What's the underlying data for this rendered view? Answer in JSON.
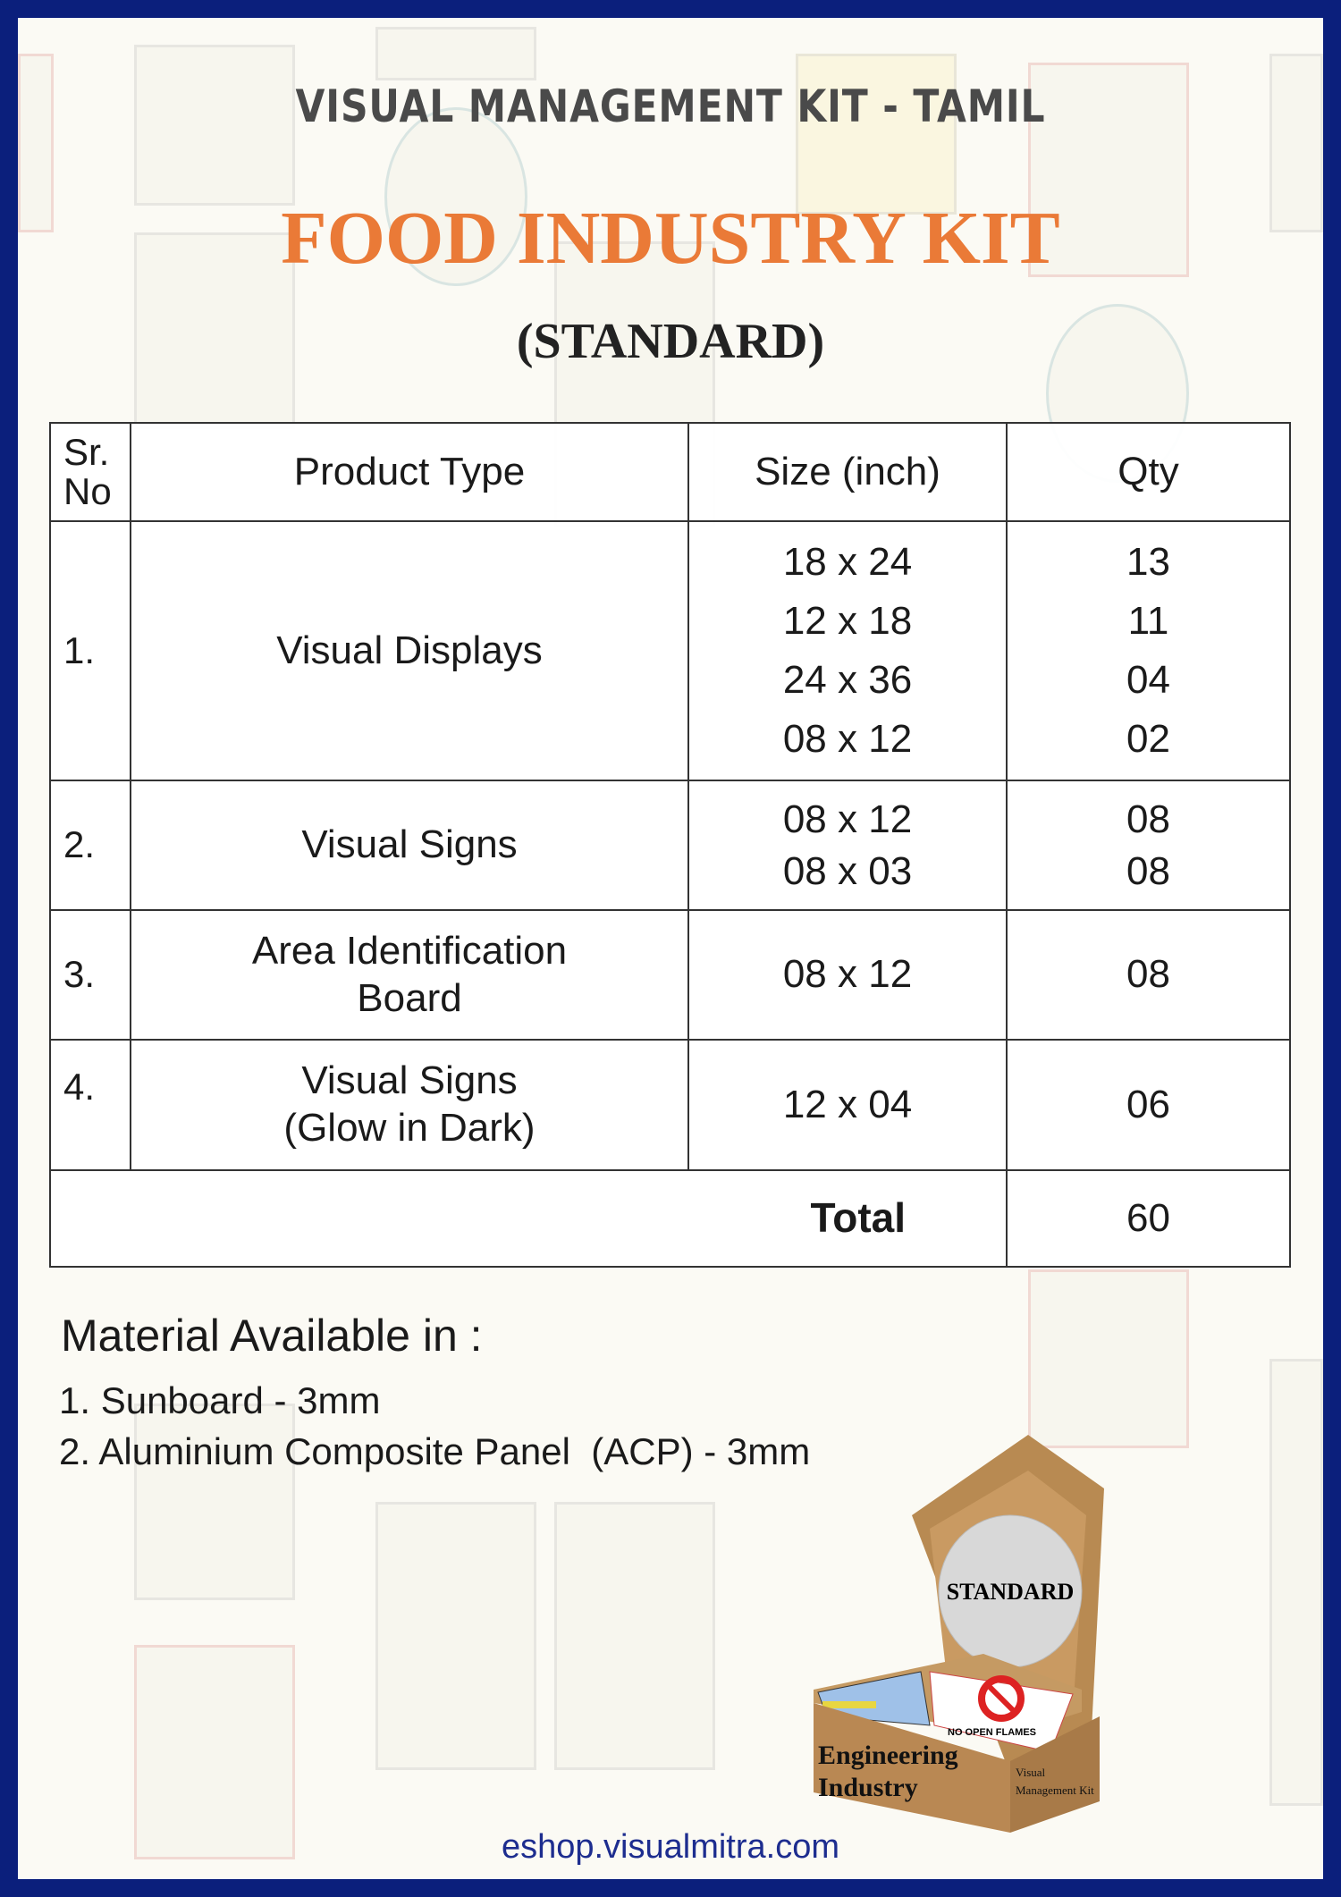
{
  "header": {
    "kit_title": "VISUAL MANAGEMENT KIT - TAMIL",
    "industry_title": "FOOD INDUSTRY KIT",
    "variant": "(STANDARD)"
  },
  "table": {
    "headers": {
      "sr": "Sr. No",
      "product": "Product Type",
      "size": "Size (inch)",
      "qty": "Qty"
    },
    "rows": [
      {
        "sr": "1.",
        "product": "Visual Displays",
        "sizes": [
          "18 x 24",
          "12 x 18",
          "24 x 36",
          "08 x 12"
        ],
        "qtys": [
          "13",
          "11",
          "04",
          "02"
        ]
      },
      {
        "sr": "2.",
        "product": "Visual Signs",
        "sizes": [
          "08 x 12",
          "08 x 03"
        ],
        "qtys": [
          "08",
          "08"
        ]
      },
      {
        "sr": "3.",
        "product_lines": [
          "Area Identification",
          "Board"
        ],
        "sizes": [
          "08 x 12"
        ],
        "qtys": [
          "08"
        ]
      },
      {
        "sr": "4.",
        "product_lines": [
          "Visual Signs",
          "(Glow in Dark)"
        ],
        "sizes": [
          "12 x 04"
        ],
        "qtys": [
          "06"
        ]
      }
    ],
    "total_label": "Total",
    "total_value": "60"
  },
  "materials": {
    "heading": "Material Available in :",
    "items": [
      "1. Sunboard - 3mm",
      "2. Aluminium Composite Panel  (ACP) - 3mm"
    ]
  },
  "box_image": {
    "lid_label": "STANDARD",
    "front_text": [
      "Engineering",
      "Industry"
    ],
    "side_text": [
      "Visual",
      "Management Kit"
    ],
    "sign_text": "NO OPEN FLAMES"
  },
  "footer": {
    "url": "eshop.visualmitra.com"
  },
  "colors": {
    "border": "#0b1f7c",
    "accent": "#ea7a37",
    "link": "#1d2d8f"
  }
}
